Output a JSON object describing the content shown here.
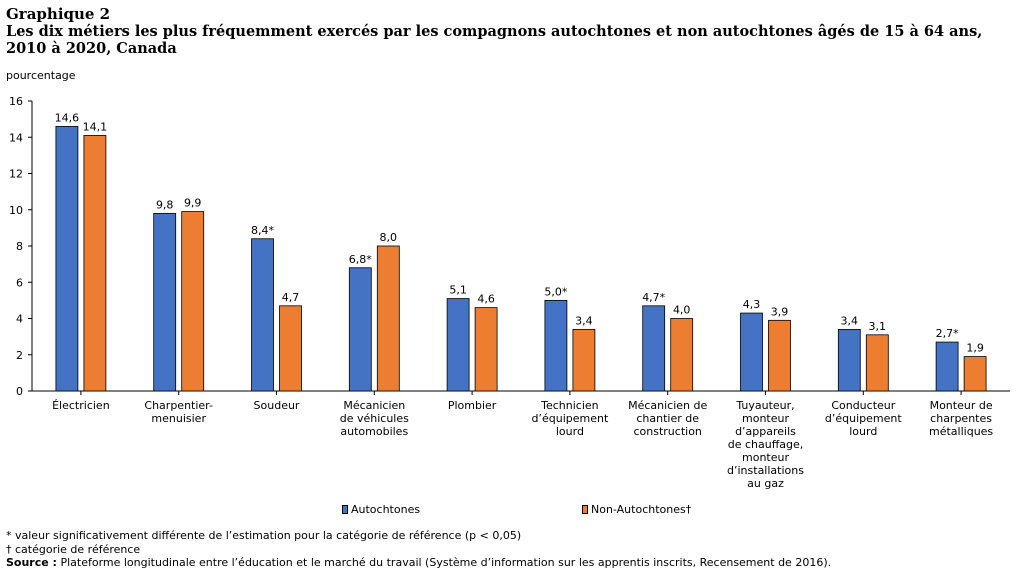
{
  "figure": {
    "number": "Graphique  2",
    "title": "Les dix métiers les plus fréquemment exercés par les compagnons autochtones et non autochtones âgés de 15 à 64 ans, 2010 à 2020, Canada"
  },
  "chart_data": {
    "type": "bar",
    "ylabel": "pourcentage",
    "xlabel": "",
    "ylim": [
      0,
      16
    ],
    "yticks": [
      "0",
      "2",
      "4",
      "6",
      "8",
      "10",
      "12",
      "14",
      "16"
    ],
    "grid": false,
    "legend_position": "bottom",
    "categories": [
      [
        "Électricien"
      ],
      [
        "Charpentier-",
        "menuisier"
      ],
      [
        "Soudeur"
      ],
      [
        "Mécanicien",
        "de véhicules",
        "automobiles"
      ],
      [
        "Plombier"
      ],
      [
        "Technicien",
        "d’équipement",
        "lourd"
      ],
      [
        "Mécanicien de",
        "chantier de",
        "construction"
      ],
      [
        "Tuyauteur,",
        "monteur",
        "d’appareils",
        "de chauffage,",
        "monteur",
        "d’installations",
        "au gaz"
      ],
      [
        "Conducteur",
        "d’équipement",
        "lourd"
      ],
      [
        "Monteur de",
        "charpentes",
        "métalliques"
      ]
    ],
    "series": [
      {
        "name": "Autochtones",
        "color": "#4472C4",
        "values": [
          14.6,
          9.8,
          8.4,
          6.8,
          5.1,
          5.0,
          4.7,
          4.3,
          3.4,
          2.7
        ],
        "labels": [
          "14,6",
          "9,8",
          "8,4*",
          "6,8*",
          "5,1",
          "5,0*",
          "4,7*",
          "4,3",
          "3,4",
          "2,7*"
        ]
      },
      {
        "name": "Non-Autochtones†",
        "color": "#ED7D31",
        "values": [
          14.1,
          9.9,
          4.7,
          8.0,
          4.6,
          3.4,
          4.0,
          3.9,
          3.1,
          1.9
        ],
        "labels": [
          "14,1",
          "9,9",
          "4,7",
          "8,0",
          "4,6",
          "3,4",
          "4,0",
          "3,9",
          "3,1",
          "1,9"
        ]
      }
    ]
  },
  "notes": {
    "significance": "* valeur significativement différente de l’estimation pour la catégorie de référence (p < 0,05)",
    "reference": "† catégorie de référence",
    "source_label": "Source :",
    "source_text": " Plateforme longitudinale entre l’éducation et le marché du travail (Système d’information sur les apprentis inscrits, Recensement de 2016)."
  }
}
